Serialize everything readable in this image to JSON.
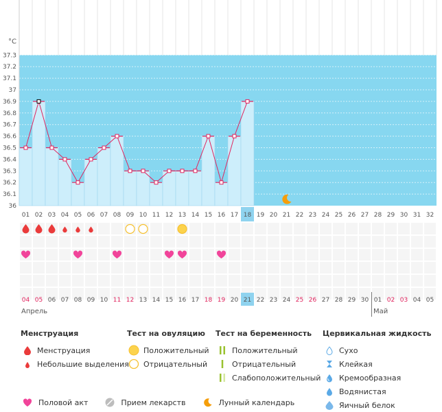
{
  "chart_data": {
    "type": "line",
    "y_unit": "°C",
    "ylim": [
      36.0,
      37.3
    ],
    "y_ticks": [
      "36",
      "36.1",
      "36.2",
      "36.3",
      "36.4",
      "36.5",
      "36.6",
      "36.7",
      "36.8",
      "36.9",
      "37",
      "37.1",
      "37.2",
      "37.3"
    ],
    "cycle_days": [
      "01",
      "02",
      "03",
      "04",
      "05",
      "06",
      "07",
      "08",
      "09",
      "10",
      "11",
      "12",
      "13",
      "14",
      "15",
      "16",
      "17",
      "18",
      "19",
      "20",
      "21",
      "22",
      "23",
      "24",
      "25",
      "26",
      "27",
      "28",
      "29",
      "30",
      "31",
      "32"
    ],
    "temperatures": [
      36.5,
      36.9,
      36.5,
      36.4,
      36.2,
      36.4,
      36.5,
      36.6,
      36.3,
      36.3,
      36.2,
      36.3,
      36.3,
      36.3,
      36.6,
      36.2,
      36.6,
      36.9
    ],
    "highlighted_cycle_day": "18",
    "max_marker_day": "02",
    "fertile_background_from_day": "01",
    "lunar_day": "21",
    "calendar_dates": [
      "04",
      "05",
      "06",
      "07",
      "08",
      "09",
      "10",
      "11",
      "12",
      "13",
      "14",
      "15",
      "16",
      "17",
      "18",
      "19",
      "20",
      "21",
      "22",
      "23",
      "24",
      "25",
      "26",
      "27",
      "28",
      "29",
      "30",
      "01",
      "02",
      "03",
      "04",
      "05"
    ],
    "weekend_dates_index": [
      0,
      1,
      7,
      8,
      14,
      15,
      21,
      22,
      28,
      29
    ],
    "today_date_index": 17,
    "months": [
      {
        "label": "Апрель",
        "start_index": 0
      },
      {
        "label": "Май",
        "start_index": 27
      }
    ],
    "menstruation": [
      {
        "day": "01",
        "type": "full"
      },
      {
        "day": "02",
        "type": "full"
      },
      {
        "day": "03",
        "type": "full"
      },
      {
        "day": "04",
        "type": "light"
      },
      {
        "day": "05",
        "type": "light"
      },
      {
        "day": "06",
        "type": "light"
      }
    ],
    "ovulation_tests": [
      {
        "day": "09",
        "result": "negative"
      },
      {
        "day": "10",
        "result": "negative"
      },
      {
        "day": "13",
        "result": "positive"
      }
    ],
    "intercourse_days": [
      "01",
      "05",
      "08",
      "12",
      "13",
      "16"
    ]
  },
  "legend": {
    "menstruation": {
      "title": "Менструация",
      "items": [
        "Менструация",
        "Небольшие выделения"
      ]
    },
    "ovulation": {
      "title": "Тест на овуляцию",
      "items": [
        "Положительный",
        "Отрицательный"
      ]
    },
    "pregnancy": {
      "title": "Тест на беременность",
      "items": [
        "Положительный",
        "Отрицательный",
        "Слабоположительный"
      ]
    },
    "cervical": {
      "title": "Цервикальная жидкость",
      "items": [
        "Сухо",
        "Клейкая",
        "Кремообразная",
        "Водянистая",
        "Яичный белок"
      ]
    },
    "bottom": [
      "Половой акт",
      "Прием лекарств",
      "Лунный календарь"
    ]
  },
  "colors": {
    "fertile_bg": "#87d7f0",
    "bar_fill": "#cdeefb",
    "bar_edge": "#9ed6ef",
    "line": "#e0245e",
    "drop_red": "#ea3b3b",
    "heart_pink": "#f1449a",
    "ovulation_yellow": "#fcd34d",
    "moon_orange": "#f59e0b",
    "highlight_day": "#8fd3ef",
    "pregnancy_green": "#9ac22f",
    "cervical_blue": "#5aa9e6"
  }
}
